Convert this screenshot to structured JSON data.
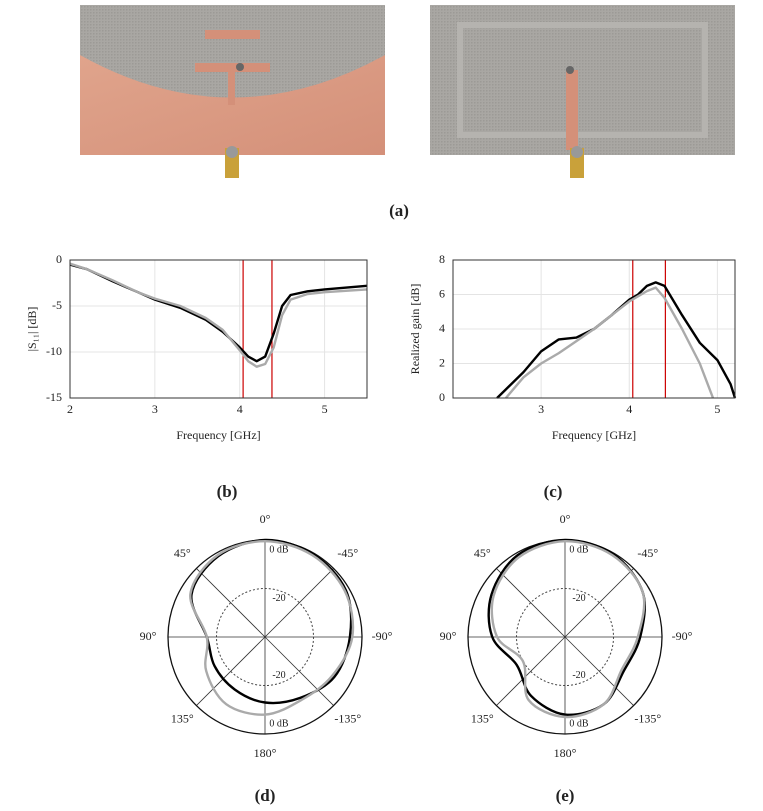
{
  "panel_labels": [
    "(a)",
    "(b)",
    "(c)",
    "(d)",
    "(e)"
  ],
  "chart_data": [
    {
      "type": "line",
      "xlabel": "Frequency [GHz]",
      "ylabel": "|S₁₁| [dB]",
      "xlim": [
        2,
        5.5
      ],
      "xticks": [
        2,
        3,
        4,
        5
      ],
      "ylim": [
        -15,
        0
      ],
      "yticks": [
        0,
        -5,
        -10,
        -15
      ],
      "grid": true,
      "vlines": [
        4.04,
        4.38
      ],
      "vline_color": "#cc0000",
      "x": [
        2,
        2.2,
        2.5,
        2.8,
        3,
        3.3,
        3.6,
        3.8,
        4,
        4.1,
        4.2,
        4.3,
        4.4,
        4.5,
        4.6,
        4.8,
        5,
        5.5
      ],
      "series": [
        {
          "color": "#000000",
          "values": [
            -0.5,
            -1,
            -2.3,
            -3.5,
            -4.3,
            -5.2,
            -6.5,
            -7.8,
            -9.5,
            -10.5,
            -11,
            -10.5,
            -8,
            -5,
            -3.8,
            -3.4,
            -3.2,
            -2.8
          ]
        },
        {
          "color": "#aaaaaa",
          "values": [
            -0.4,
            -1,
            -2.2,
            -3.5,
            -4.2,
            -5,
            -6.3,
            -7.6,
            -9.8,
            -11,
            -11.6,
            -11.3,
            -9.5,
            -6,
            -4.3,
            -3.7,
            -3.5,
            -3.2
          ]
        }
      ]
    },
    {
      "type": "line",
      "xlabel": "Frequency [GHz]",
      "ylabel": "Realized gain [dB]",
      "xlim": [
        2,
        5.2
      ],
      "xticks": [
        3,
        4,
        5
      ],
      "ylim": [
        0,
        8
      ],
      "yticks": [
        0,
        2,
        4,
        6,
        8
      ],
      "grid": true,
      "vlines": [
        4.04,
        4.41
      ],
      "vline_color": "#cc0000",
      "series": [
        {
          "color": "#000000",
          "x": [
            2.5,
            2.6,
            2.8,
            3,
            3.2,
            3.4,
            3.6,
            3.8,
            4,
            4.1,
            4.2,
            4.3,
            4.4,
            4.6,
            4.8,
            5,
            5.15,
            5.2
          ],
          "values": [
            0,
            0.5,
            1.5,
            2.7,
            3.4,
            3.5,
            4,
            4.8,
            5.7,
            6,
            6.5,
            6.7,
            6.5,
            4.8,
            3.2,
            2.2,
            0.8,
            0
          ]
        },
        {
          "color": "#aaaaaa",
          "x": [
            2.6,
            2.8,
            3,
            3.2,
            3.4,
            3.6,
            3.8,
            4,
            4.2,
            4.3,
            4.4,
            4.6,
            4.8,
            4.95
          ],
          "values": [
            0,
            1.2,
            2,
            2.6,
            3.3,
            4,
            4.8,
            5.6,
            6.2,
            6.4,
            5.8,
            4,
            2,
            0
          ]
        }
      ]
    },
    {
      "type": "polar",
      "rlim": [
        -40,
        0
      ],
      "rticks": [
        -20,
        {
          "value": 0,
          "label": "0 dB"
        }
      ],
      "thetaticks": [
        {
          "value": 0,
          "label": "0°"
        },
        {
          "value": 45,
          "label": "45°"
        },
        {
          "value": -45,
          "label": "-45°"
        },
        {
          "value": 90,
          "label": "90°"
        },
        {
          "value": -90,
          "label": "-90°"
        },
        {
          "value": 135,
          "label": "135°"
        },
        {
          "value": -135,
          "label": "-135°"
        },
        {
          "value": 180,
          "label": "180°"
        }
      ],
      "theta": [
        0,
        30,
        60,
        90,
        120,
        150,
        180,
        -150,
        -120,
        -90,
        -60,
        -30
      ],
      "series": [
        {
          "color": "#000000",
          "values": [
            0,
            -1.5,
            -5,
            -16,
            -16,
            -15,
            -13,
            -11,
            -7,
            -5,
            -1.5,
            -0.5
          ]
        },
        {
          "color": "#aaaaaa",
          "values": [
            -0.5,
            -1,
            -4.5,
            -16,
            -12,
            -8,
            -8,
            -10,
            -8,
            -4,
            -2,
            -1
          ]
        }
      ]
    },
    {
      "type": "polar",
      "rlim": [
        -40,
        0
      ],
      "rticks": [
        -20,
        {
          "value": 0,
          "label": "0 dB"
        }
      ],
      "thetaticks": [
        {
          "value": 0,
          "label": "0°"
        },
        {
          "value": 45,
          "label": "45°"
        },
        {
          "value": -45,
          "label": "-45°"
        },
        {
          "value": 90,
          "label": "90°"
        },
        {
          "value": -90,
          "label": "-90°"
        },
        {
          "value": 135,
          "label": "135°"
        },
        {
          "value": -135,
          "label": "-135°"
        },
        {
          "value": 180,
          "label": "180°"
        }
      ],
      "theta": [
        0,
        30,
        60,
        90,
        120,
        150,
        180,
        -150,
        -120,
        -90,
        -60,
        -30
      ],
      "series": [
        {
          "color": "#000000",
          "values": [
            0,
            -1,
            -5,
            -10,
            -17,
            -12,
            -8,
            -8,
            -12,
            -9,
            -3,
            -0.5
          ]
        },
        {
          "color": "#aaaaaa",
          "values": [
            -0.5,
            -2,
            -6,
            -12,
            -20,
            -10,
            -7,
            -8,
            -13,
            -10,
            -3,
            -1
          ]
        }
      ]
    }
  ]
}
